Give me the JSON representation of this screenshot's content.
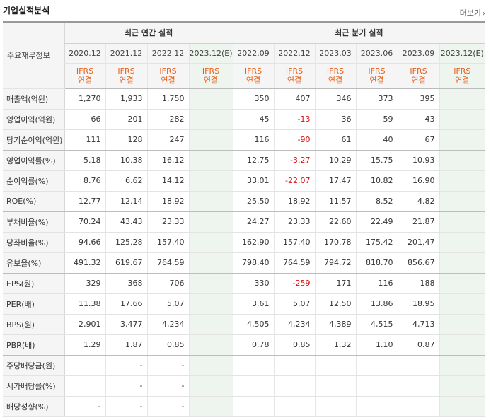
{
  "title": "기업실적분석",
  "more_label": "더보기",
  "header": {
    "row_label": "주요재무정보",
    "annual_title": "최근 연간 실적",
    "quarter_title": "최근 분기 실적",
    "annual_periods": [
      "2020.12",
      "2021.12",
      "2022.12",
      "2023.12(E)"
    ],
    "quarter_periods": [
      "2022.09",
      "2022.12",
      "2023.03",
      "2023.06",
      "2023.09",
      "2023.12(E)"
    ],
    "basis_top": "IFRS",
    "basis_bottom": "연결"
  },
  "rows": [
    {
      "label": "매출액(억원)",
      "annual": [
        "1,270",
        "1,933",
        "1,750",
        ""
      ],
      "quarter": [
        "350",
        "407",
        "346",
        "373",
        "395",
        ""
      ]
    },
    {
      "label": "영업이익(억원)",
      "annual": [
        "66",
        "201",
        "282",
        ""
      ],
      "quarter": [
        "45",
        "-13",
        "36",
        "59",
        "43",
        ""
      ]
    },
    {
      "label": "당기순이익(억원)",
      "annual": [
        "111",
        "128",
        "247",
        ""
      ],
      "quarter": [
        "116",
        "-90",
        "61",
        "40",
        "67",
        ""
      ]
    },
    {
      "label": "영업이익률(%)",
      "annual": [
        "5.18",
        "10.38",
        "16.12",
        ""
      ],
      "quarter": [
        "12.75",
        "-3.27",
        "10.29",
        "15.75",
        "10.93",
        ""
      ]
    },
    {
      "label": "순이익률(%)",
      "annual": [
        "8.76",
        "6.62",
        "14.12",
        ""
      ],
      "quarter": [
        "33.01",
        "-22.07",
        "17.47",
        "10.82",
        "16.90",
        ""
      ]
    },
    {
      "label": "ROE(%)",
      "annual": [
        "12.77",
        "12.14",
        "18.92",
        ""
      ],
      "quarter": [
        "25.50",
        "18.92",
        "11.57",
        "8.52",
        "4.82",
        ""
      ]
    },
    {
      "label": "부채비율(%)",
      "annual": [
        "70.24",
        "43.43",
        "23.33",
        ""
      ],
      "quarter": [
        "24.27",
        "23.33",
        "22.60",
        "22.49",
        "21.87",
        ""
      ]
    },
    {
      "label": "당좌비율(%)",
      "annual": [
        "94.66",
        "125.28",
        "157.40",
        ""
      ],
      "quarter": [
        "162.90",
        "157.40",
        "170.78",
        "175.42",
        "201.47",
        ""
      ]
    },
    {
      "label": "유보율(%)",
      "annual": [
        "491.32",
        "619.67",
        "764.59",
        ""
      ],
      "quarter": [
        "798.40",
        "764.59",
        "794.72",
        "818.70",
        "856.67",
        ""
      ]
    },
    {
      "label": "EPS(원)",
      "annual": [
        "329",
        "368",
        "706",
        ""
      ],
      "quarter": [
        "330",
        "-259",
        "171",
        "116",
        "188",
        ""
      ]
    },
    {
      "label": "PER(배)",
      "annual": [
        "11.38",
        "17.66",
        "5.07",
        ""
      ],
      "quarter": [
        "3.61",
        "5.07",
        "12.50",
        "13.86",
        "18.95",
        ""
      ]
    },
    {
      "label": "BPS(원)",
      "annual": [
        "2,901",
        "3,477",
        "4,234",
        ""
      ],
      "quarter": [
        "4,505",
        "4,234",
        "4,389",
        "4,515",
        "4,713",
        ""
      ]
    },
    {
      "label": "PBR(배)",
      "annual": [
        "1.29",
        "1.87",
        "0.85",
        ""
      ],
      "quarter": [
        "0.78",
        "0.85",
        "1.32",
        "1.10",
        "0.87",
        ""
      ]
    },
    {
      "label": "주당배당금(원)",
      "annual": [
        "",
        "-",
        "-",
        ""
      ],
      "quarter": [
        "",
        "",
        "",
        "",
        "",
        ""
      ]
    },
    {
      "label": "시가배당률(%)",
      "annual": [
        "",
        "-",
        "-",
        ""
      ],
      "quarter": [
        "",
        "",
        "",
        "",
        "",
        ""
      ]
    },
    {
      "label": "배당성향(%)",
      "annual": [
        "-",
        "-",
        "-",
        ""
      ],
      "quarter": [
        "",
        "",
        "",
        "",
        "",
        ""
      ]
    }
  ]
}
